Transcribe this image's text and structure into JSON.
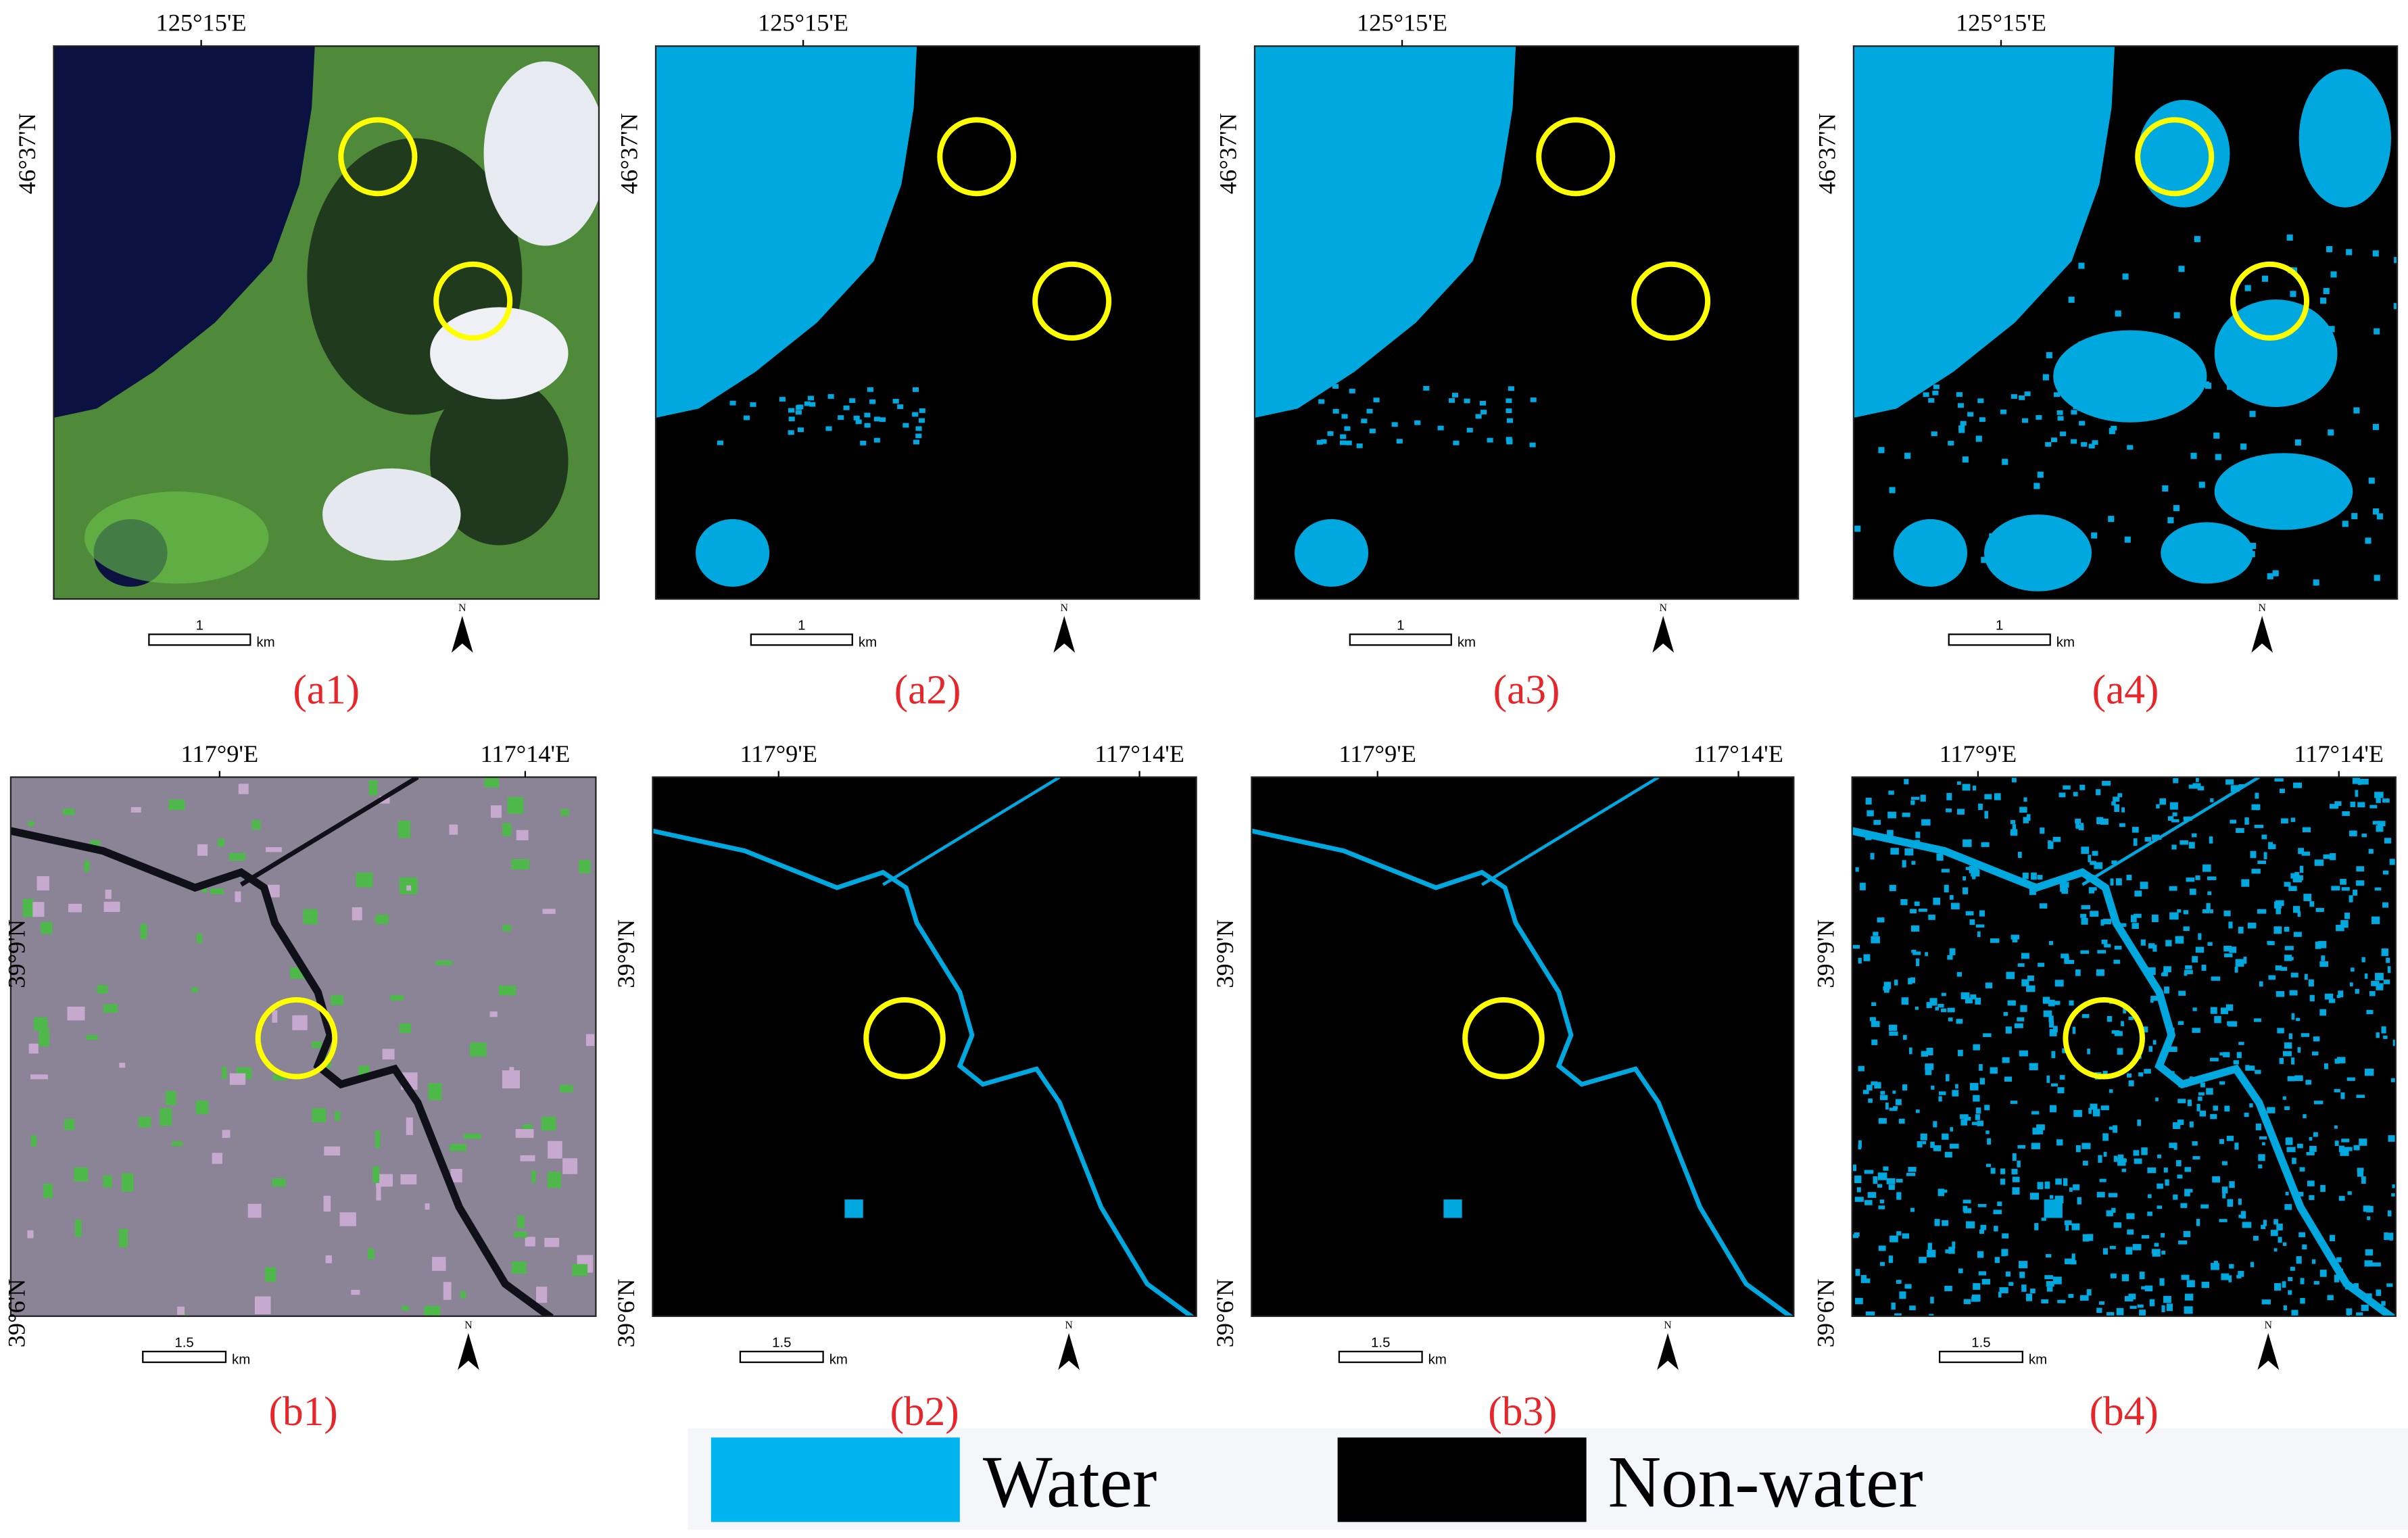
{
  "panels": [
    {
      "label": "(a1)",
      "lon_labels": [
        "125°15'E"
      ],
      "lat_labels": [
        "46°37'N"
      ],
      "scale_label": "1",
      "scale_unit": "km",
      "north": "N"
    },
    {
      "label": "(a2)",
      "lon_labels": [
        "125°15'E"
      ],
      "lat_labels": [
        "46°37'N"
      ],
      "scale_label": "1",
      "scale_unit": "km",
      "north": "N"
    },
    {
      "label": "(a3)",
      "lon_labels": [
        "125°15'E"
      ],
      "lat_labels": [
        "46°37'N"
      ],
      "scale_label": "1",
      "scale_unit": "km",
      "north": "N"
    },
    {
      "label": "(a4)",
      "lon_labels": [
        "125°15'E"
      ],
      "lat_labels": [
        "46°37'N"
      ],
      "scale_label": "1",
      "scale_unit": "km",
      "north": "N"
    },
    {
      "label": "(b1)",
      "lon_labels": [
        "117°9'E",
        "117°14'E"
      ],
      "lat_labels": [
        "39°9'N",
        "39°6'N"
      ],
      "scale_label": "1.5",
      "scale_unit": "km",
      "north": "N"
    },
    {
      "label": "(b2)",
      "lon_labels": [
        "117°9'E",
        "117°14'E"
      ],
      "lat_labels": [
        "39°9'N",
        "39°6'N"
      ],
      "scale_label": "1.5",
      "scale_unit": "km",
      "north": "N"
    },
    {
      "label": "(b3)",
      "lon_labels": [
        "117°9'E",
        "117°14'E"
      ],
      "lat_labels": [
        "39°9'N",
        "39°6'N"
      ],
      "scale_label": "1.5",
      "scale_unit": "km",
      "north": "N"
    },
    {
      "label": "(b4)",
      "lon_labels": [
        "117°9'E",
        "117°14'E"
      ],
      "lat_labels": [
        "39°9'N",
        "39°6'N"
      ],
      "scale_label": "1.5",
      "scale_unit": "km",
      "north": "N"
    }
  ],
  "legend": {
    "items": [
      "Water",
      "Non-water"
    ]
  }
}
